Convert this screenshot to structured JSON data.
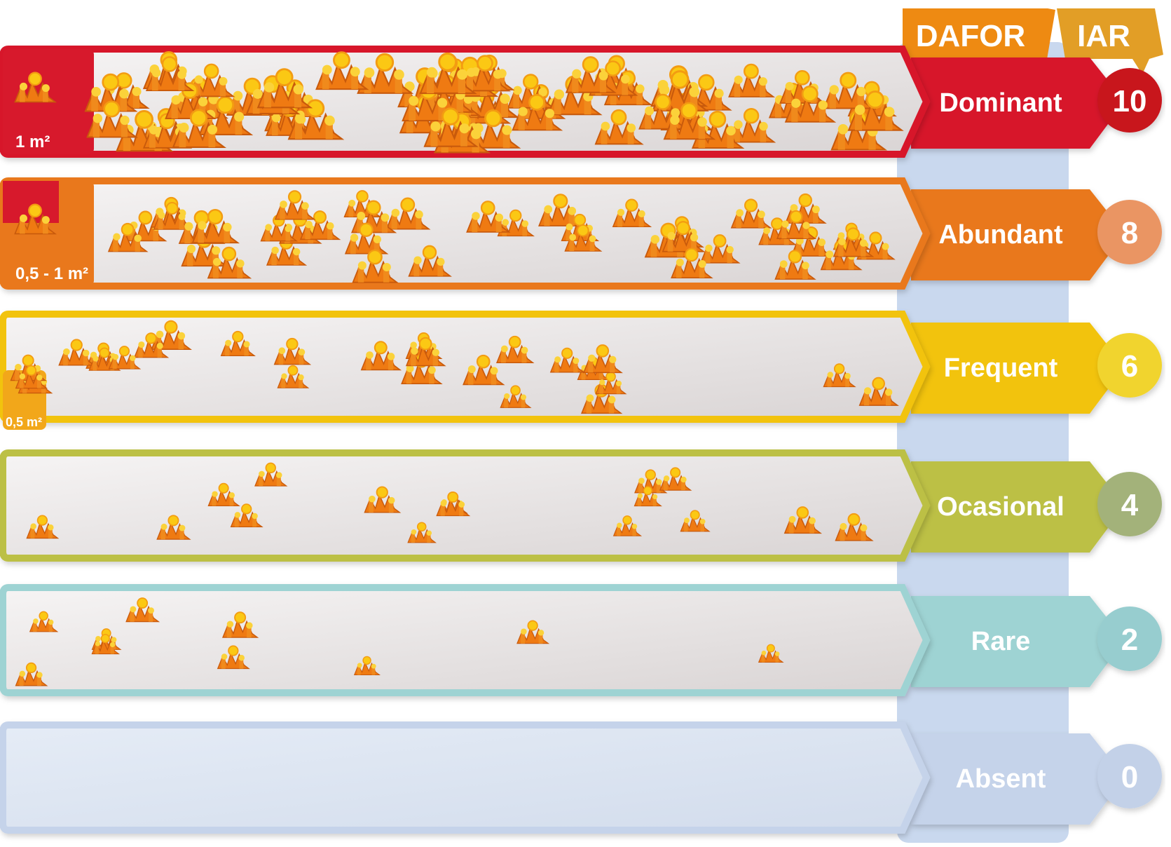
{
  "header": {
    "dafor_label": "DAFOR",
    "iar_label": "IAR"
  },
  "colors": {
    "header_orange": "#ee8a12",
    "column_blue": "#c9d8ee",
    "coral_orange": "#ef7a12",
    "coral_yellow": "#fbc814"
  },
  "levels": [
    {
      "name": "Dominant",
      "score": "10",
      "area": "1 m²",
      "color": "#d7192c",
      "badge": "#c8121f",
      "density": 1.0
    },
    {
      "name": "Abundant",
      "score": "8",
      "area": "0,5 - 1 m²",
      "color": "#e9781c",
      "badge": "#ea9563",
      "density": 0.6
    },
    {
      "name": "Frequent",
      "score": "6",
      "area": "0,5 m²",
      "color": "#f2c311",
      "badge": "#f1d42e",
      "density": 0.35
    },
    {
      "name": "Ocasional",
      "score": "4",
      "area": "",
      "color": "#bcc044",
      "badge": "#a3b27a",
      "density": 0.2
    },
    {
      "name": "Rare",
      "score": "2",
      "area": "",
      "color": "#9ed3d3",
      "badge": "#97cdcf",
      "density": 0.1
    },
    {
      "name": "Absent",
      "score": "0",
      "area": "",
      "color": "#c5d3ea",
      "badge": "#c3d1e8",
      "density": 0.0
    }
  ]
}
